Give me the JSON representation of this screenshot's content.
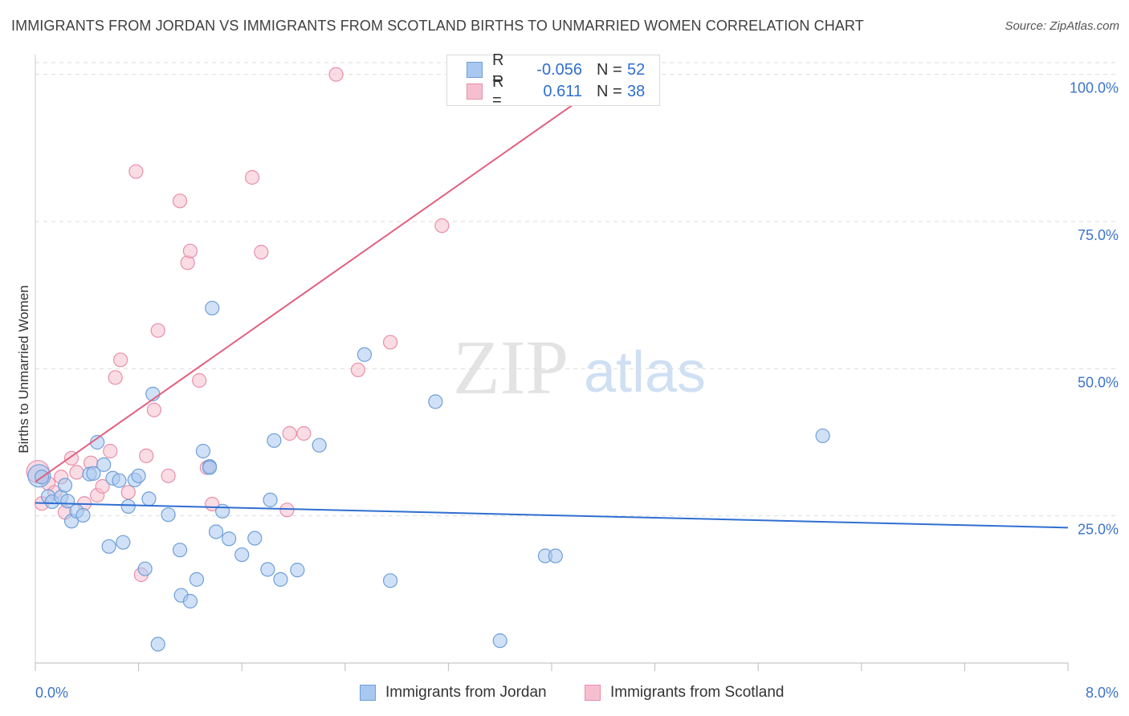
{
  "title": "IMMIGRANTS FROM JORDAN VS IMMIGRANTS FROM SCOTLAND BIRTHS TO UNMARRIED WOMEN CORRELATION CHART",
  "source": "Source: ZipAtlas.com",
  "watermark": {
    "zip": "ZIP",
    "atlas": "atlas"
  },
  "legend": {
    "jordan": {
      "r_label": "R =",
      "r_value": "-0.056",
      "n_label": "N =",
      "n_value": "52"
    },
    "scotland": {
      "r_label": "R =",
      "r_value": "0.611",
      "n_label": "N =",
      "n_value": "38"
    }
  },
  "colors": {
    "jordan_fill": "#a9c8f0",
    "jordan_stroke": "#6f9fd8",
    "jordan_line": "#2f6fd1",
    "scotland_fill": "#f6bfd0",
    "scotland_stroke": "#e88fa9",
    "scotland_line": "#e2607f",
    "tick_label": "#3d74c9",
    "grid": "#dddddd"
  },
  "chart_data": {
    "type": "scatter",
    "title": "IMMIGRANTS FROM JORDAN VS IMMIGRANTS FROM SCOTLAND BIRTHS TO UNMARRIED WOMEN CORRELATION CHART",
    "xlabel": "",
    "ylabel": "Births to Unmarried Women",
    "xlim": [
      0,
      8
    ],
    "ylim": [
      0,
      102
    ],
    "x_tick_labels": [
      {
        "value": 0,
        "label": "0.0%"
      },
      {
        "value": 8,
        "label": "8.0%"
      }
    ],
    "y_tick_labels": [
      {
        "value": 25,
        "label": "25.0%"
      },
      {
        "value": 50,
        "label": "50.0%"
      },
      {
        "value": 75,
        "label": "75.0%"
      },
      {
        "value": 100,
        "label": "100.0%"
      }
    ],
    "grid": true,
    "legend_position": "top-center",
    "series": [
      {
        "name": "Immigrants from Jordan",
        "points": [
          [
            0.03,
            31.8
          ],
          [
            0.05,
            31.6
          ],
          [
            0.1,
            28.3
          ],
          [
            0.13,
            27.4
          ],
          [
            0.2,
            28.2
          ],
          [
            0.23,
            30.2
          ],
          [
            0.25,
            27.5
          ],
          [
            0.28,
            24.1
          ],
          [
            0.32,
            25.8
          ],
          [
            0.37,
            25.1
          ],
          [
            0.42,
            32.1
          ],
          [
            0.45,
            32.2
          ],
          [
            0.48,
            37.5
          ],
          [
            0.53,
            33.7
          ],
          [
            0.57,
            19.8
          ],
          [
            0.6,
            31.4
          ],
          [
            0.65,
            31
          ],
          [
            0.68,
            20.5
          ],
          [
            0.72,
            26.6
          ],
          [
            0.77,
            31.1
          ],
          [
            0.8,
            31.8
          ],
          [
            0.85,
            16
          ],
          [
            0.88,
            27.9
          ],
          [
            0.91,
            45.7
          ],
          [
            0.95,
            3.2
          ],
          [
            1.03,
            25.2
          ],
          [
            1.12,
            19.2
          ],
          [
            1.13,
            11.5
          ],
          [
            1.2,
            10.5
          ],
          [
            1.25,
            14.2
          ],
          [
            1.3,
            36
          ],
          [
            1.35,
            33.4
          ],
          [
            1.37,
            60.3
          ],
          [
            1.4,
            22.3
          ],
          [
            1.45,
            25.8
          ],
          [
            1.5,
            21.1
          ],
          [
            1.6,
            18.4
          ],
          [
            1.7,
            21.2
          ],
          [
            1.8,
            15.9
          ],
          [
            1.82,
            27.7
          ],
          [
            1.85,
            37.8
          ],
          [
            1.9,
            14.2
          ],
          [
            2.03,
            15.8
          ],
          [
            2.2,
            37
          ],
          [
            2.55,
            52.4
          ],
          [
            2.75,
            14
          ],
          [
            3.1,
            44.4
          ],
          [
            3.6,
            3.8
          ],
          [
            3.95,
            18.2
          ],
          [
            4.03,
            18.2
          ],
          [
            6.1,
            38.6
          ],
          [
            1.35,
            33.2
          ]
        ]
      },
      {
        "name": "Immigrants from Scotland",
        "points": [
          [
            0.02,
            32.5
          ],
          [
            0.05,
            27.1
          ],
          [
            0.1,
            30.5
          ],
          [
            0.15,
            29
          ],
          [
            0.2,
            31.6
          ],
          [
            0.23,
            25.6
          ],
          [
            0.28,
            34.8
          ],
          [
            0.32,
            32.4
          ],
          [
            0.38,
            27.1
          ],
          [
            0.43,
            34
          ],
          [
            0.48,
            28.5
          ],
          [
            0.52,
            30
          ],
          [
            0.58,
            36
          ],
          [
            0.62,
            48.5
          ],
          [
            0.66,
            51.5
          ],
          [
            0.72,
            29
          ],
          [
            0.78,
            83.5
          ],
          [
            0.82,
            15
          ],
          [
            0.86,
            35.2
          ],
          [
            0.92,
            43
          ],
          [
            0.95,
            56.5
          ],
          [
            1.03,
            31.8
          ],
          [
            1.12,
            78.5
          ],
          [
            1.18,
            68
          ],
          [
            1.2,
            70
          ],
          [
            1.27,
            48
          ],
          [
            1.33,
            33.2
          ],
          [
            1.37,
            27
          ],
          [
            1.68,
            82.5
          ],
          [
            1.75,
            69.8
          ],
          [
            1.95,
            26
          ],
          [
            1.97,
            39
          ],
          [
            2.08,
            39
          ],
          [
            2.33,
            100
          ],
          [
            2.5,
            49.8
          ],
          [
            2.75,
            54.5
          ],
          [
            3.15,
            74.3
          ],
          [
            4.5,
            100
          ]
        ]
      }
    ],
    "trend_lines": [
      {
        "series": "Immigrants from Jordan",
        "start": [
          0,
          27.2
        ],
        "end": [
          8,
          23
        ]
      },
      {
        "series": "Immigrants from Scotland",
        "start": [
          0,
          30.8
        ],
        "end": [
          4.5,
          100
        ]
      }
    ],
    "annotations": [
      {
        "series": "Immigrants from Jordan",
        "r": "-0.056",
        "n": "52"
      },
      {
        "series": "Immigrants from Scotland",
        "r": "0.611",
        "n": "38"
      }
    ]
  }
}
